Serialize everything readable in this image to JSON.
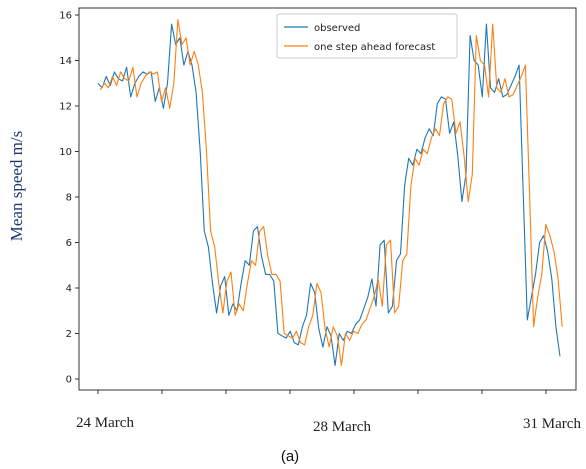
{
  "chart_data": {
    "type": "line",
    "ylabel": "Mean speed m/s",
    "ylim": [
      0,
      16.5
    ],
    "yticks": [
      0,
      2,
      4,
      6,
      8,
      10,
      12,
      14,
      16
    ],
    "x_tick_labels": [
      "24 March",
      "28 March",
      "31 March"
    ],
    "grid": false,
    "legend_position": "top-center",
    "caption": "(a)",
    "series": [
      {
        "name": "observed",
        "color": "#1f77b4",
        "values": [
          13.0,
          12.8,
          13.3,
          12.9,
          13.5,
          13.2,
          13.1,
          13.7,
          12.4,
          13.0,
          13.3,
          13.5,
          13.4,
          13.5,
          12.2,
          12.8,
          11.9,
          13.0,
          15.6,
          14.7,
          15.0,
          13.8,
          14.4,
          13.8,
          12.6,
          10.0,
          6.5,
          5.8,
          4.2,
          2.9,
          4.1,
          4.5,
          2.8,
          3.3,
          3.0,
          4.2,
          5.2,
          5.0,
          6.5,
          6.7,
          5.4,
          4.6,
          4.6,
          4.3,
          2.0,
          1.9,
          1.8,
          2.1,
          1.6,
          1.5,
          2.3,
          2.8,
          4.2,
          3.8,
          2.2,
          1.4,
          2.3,
          1.9,
          0.6,
          2.0,
          1.7,
          2.1,
          2.0,
          2.4,
          2.6,
          3.1,
          3.6,
          4.4,
          3.2,
          5.9,
          6.1,
          2.9,
          3.2,
          5.2,
          5.5,
          8.5,
          9.7,
          9.4,
          10.1,
          9.9,
          10.6,
          11.0,
          10.7,
          12.1,
          12.4,
          12.3,
          10.8,
          11.3,
          9.8,
          7.8,
          9.0,
          15.1,
          14.0,
          13.8,
          12.4,
          15.6,
          12.8,
          12.6,
          13.2,
          12.4,
          12.5,
          12.9,
          13.3,
          13.8,
          8.2,
          2.6,
          3.6,
          4.6,
          6.0,
          6.3,
          5.6,
          4.4,
          2.3,
          1.0
        ]
      },
      {
        "name": "one step ahead forecast",
        "color": "#ff7f0e",
        "values": [
          12.7,
          13.0,
          12.8,
          13.3,
          12.9,
          13.5,
          13.2,
          13.1,
          13.7,
          12.4,
          13.0,
          13.3,
          13.5,
          13.4,
          13.5,
          12.2,
          12.8,
          11.9,
          13.0,
          15.8,
          14.7,
          15.0,
          13.8,
          14.4,
          13.8,
          12.6,
          10.0,
          6.5,
          5.8,
          4.2,
          2.9,
          4.3,
          4.7,
          2.8,
          3.3,
          3.0,
          4.2,
          5.2,
          5.0,
          6.5,
          6.7,
          5.4,
          4.6,
          4.6,
          4.3,
          2.0,
          1.9,
          1.8,
          2.1,
          1.6,
          1.5,
          2.3,
          2.8,
          4.2,
          3.8,
          2.2,
          1.4,
          2.3,
          1.9,
          0.6,
          2.0,
          1.7,
          2.1,
          2.0,
          2.4,
          2.6,
          3.1,
          3.6,
          4.4,
          3.2,
          5.9,
          6.1,
          2.9,
          3.2,
          5.2,
          5.5,
          8.5,
          9.7,
          9.4,
          10.1,
          9.9,
          10.6,
          11.0,
          10.7,
          12.1,
          12.4,
          12.3,
          10.8,
          11.3,
          9.8,
          7.8,
          9.0,
          15.1,
          14.0,
          13.8,
          12.4,
          15.6,
          12.8,
          12.6,
          13.2,
          12.4,
          12.5,
          12.9,
          13.3,
          13.8,
          8.2,
          2.3,
          3.6,
          4.6,
          6.8,
          6.3,
          5.6,
          4.4,
          2.3
        ]
      }
    ]
  }
}
